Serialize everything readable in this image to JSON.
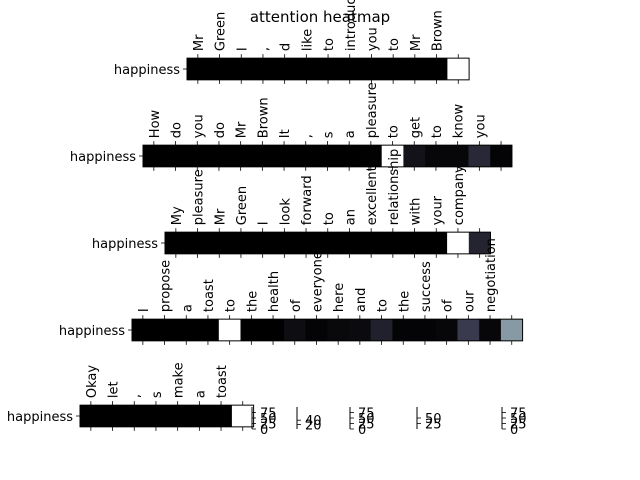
{
  "chart_data": {
    "type": "heatmap",
    "title": "attention heatmap",
    "colormap": "bone",
    "grid": false,
    "rows": [
      {
        "label": "happiness",
        "tokens": [
          "Mr",
          "Green",
          "I",
          ",",
          "d",
          "like",
          "to",
          "introduce",
          "you",
          "to",
          "Mr",
          "Brown",
          ""
        ],
        "values": [
          0,
          0,
          0,
          0,
          0,
          0,
          0,
          0,
          0,
          0,
          0,
          0,
          100
        ],
        "colorbar_ticks": [
          0,
          25,
          50,
          75
        ]
      },
      {
        "label": "happiness",
        "tokens": [
          "How",
          "do",
          "you",
          "do",
          "Mr",
          "Brown",
          "It",
          ",",
          "s",
          "a",
          "pleasure",
          "to",
          "get",
          "to",
          "know",
          "you",
          ""
        ],
        "values": [
          0,
          0,
          0,
          0,
          0,
          0,
          0,
          0,
          0,
          0,
          1,
          100,
          8,
          3,
          3,
          18,
          2
        ],
        "colorbar_ticks": [
          20,
          40
        ]
      },
      {
        "label": "happiness",
        "tokens": [
          "My",
          "pleasure",
          "Mr",
          "Green",
          "I",
          "look",
          "forward",
          "to",
          "an",
          "excellent",
          "relationship",
          "with",
          "your",
          "company",
          ""
        ],
        "values": [
          0,
          0,
          0,
          0,
          0,
          0,
          0,
          0,
          0,
          0,
          0,
          0,
          0,
          100,
          16
        ],
        "colorbar_ticks": [
          0,
          25,
          50,
          75
        ]
      },
      {
        "label": "happiness",
        "tokens": [
          "I",
          "propose",
          "a",
          "toast",
          "to",
          "the",
          "health",
          "of",
          "everyone",
          "here",
          "and",
          "to",
          "the",
          "success",
          "of",
          "our",
          "negotiation",
          ""
        ],
        "values": [
          0,
          0,
          0,
          0,
          100,
          0,
          0,
          6,
          2,
          4,
          5,
          15,
          2,
          2,
          3,
          26,
          3,
          60
        ],
        "colorbar_ticks": [
          25,
          50
        ]
      },
      {
        "label": "happiness",
        "tokens": [
          "Okay",
          "let",
          ",",
          "s",
          "make",
          "a",
          "toast",
          ""
        ],
        "values": [
          0,
          0,
          0,
          0,
          0,
          0,
          0,
          100
        ],
        "colorbar_ticks": [
          0,
          25,
          50,
          75
        ]
      }
    ]
  }
}
